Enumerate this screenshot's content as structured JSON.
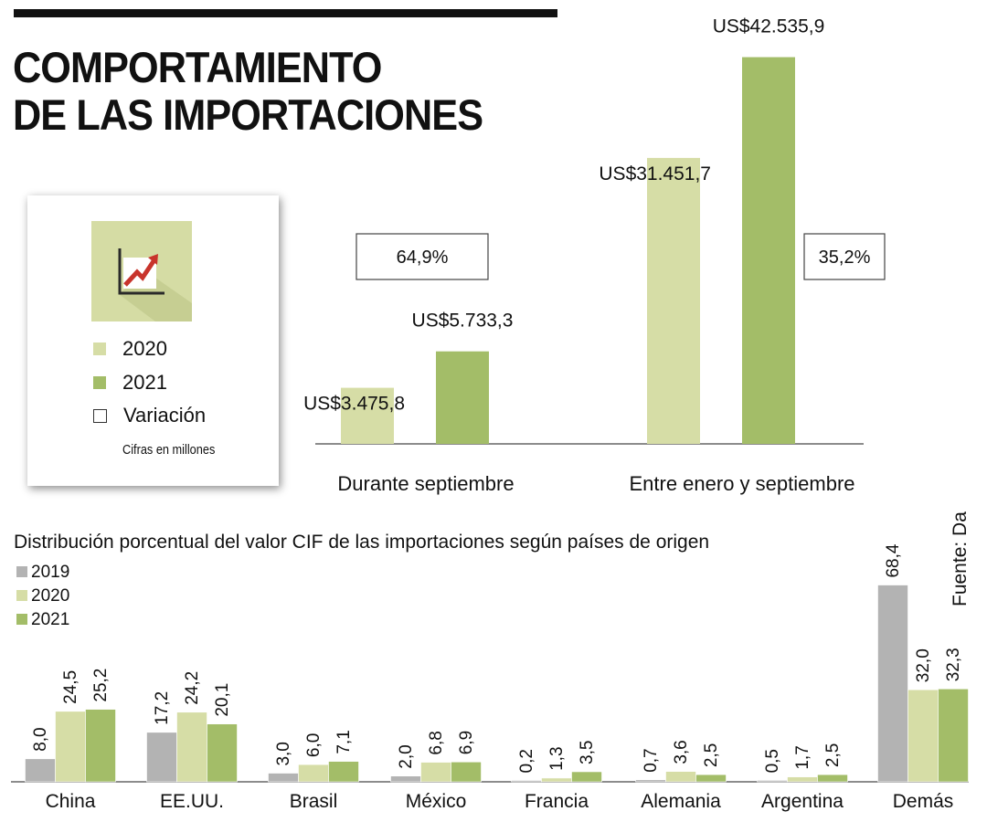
{
  "title": {
    "line1": "COMPORTAMIENTO",
    "line2": "DE LAS IMPORTACIONES"
  },
  "colors": {
    "y2019": "#b3b3b3",
    "y2020": "#d6dda6",
    "y2021": "#a3bd68",
    "logo_bg": "#d5dca4",
    "arrow": "#c8342c"
  },
  "legend": {
    "icon": "chart-trend-icon",
    "items": [
      {
        "label": "2020"
      },
      {
        "label": "2021"
      },
      {
        "label": "Variación"
      }
    ],
    "note": "Cifras en millones"
  },
  "chart_data": [
    {
      "type": "bar",
      "title": "COMPORTAMIENTO DE LAS IMPORTACIONES",
      "categories": [
        "Durante septiembre",
        "Entre enero y septiembre"
      ],
      "series": [
        {
          "name": "2020",
          "values": [
            3475.8,
            31451.7
          ],
          "labels": [
            "US$3.475,8",
            "US$31.451,7"
          ]
        },
        {
          "name": "2021",
          "values": [
            5733.3,
            42535.9
          ],
          "labels": [
            "US$5.733,3",
            "US$42.535,9"
          ]
        }
      ],
      "variation": [
        "64,9%",
        "35,2%"
      ],
      "unit": "Cifras en millones"
    },
    {
      "type": "bar",
      "title": "Distribución porcentual del valor CIF de las importaciones según países de origen",
      "source": "Fuente: Dane",
      "categories": [
        "China",
        "EE.UU.",
        "Brasil",
        "México",
        "Francia",
        "Alemania",
        "Argentina",
        "Demás"
      ],
      "series": [
        {
          "name": "2019",
          "values": [
            8.0,
            17.2,
            3.0,
            2.0,
            0.2,
            0.7,
            0.5,
            68.4
          ],
          "labels": [
            "8,0",
            "17,2",
            "3,0",
            "2,0",
            "0,2",
            "0,7",
            "0,5",
            "68,4"
          ]
        },
        {
          "name": "2020",
          "values": [
            24.5,
            24.2,
            6.0,
            6.8,
            1.3,
            3.6,
            1.7,
            32.0
          ],
          "labels": [
            "24,5",
            "24,2",
            "6,0",
            "6,8",
            "1,3",
            "3,6",
            "1,7",
            "32,0"
          ]
        },
        {
          "name": "2021",
          "values": [
            25.2,
            20.1,
            7.1,
            6.9,
            3.5,
            2.5,
            2.5,
            32.3
          ],
          "labels": [
            "25,2",
            "20,1",
            "7,1",
            "6,9",
            "3,5",
            "2,5",
            "2,5",
            "32,3"
          ]
        }
      ]
    }
  ]
}
